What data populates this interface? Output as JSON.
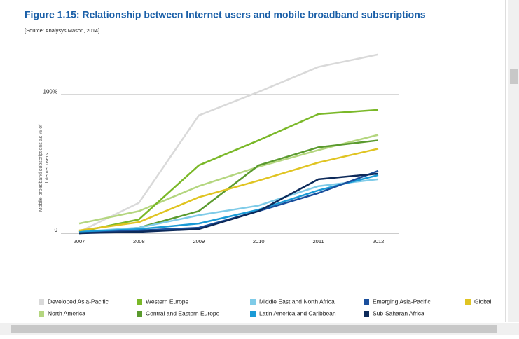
{
  "chart_data": {
    "type": "line",
    "title": "Figure 1.15: Relationship between Internet users and mobile broadband subscriptions",
    "subtitle": "[Source: Analysys Mason, 2014]",
    "y_label": [
      "Mobile broadband subscriptions as % of",
      "Internet users"
    ],
    "categories": [
      "2007",
      "2008",
      "2009",
      "2010",
      "2011",
      "2012"
    ],
    "ylim": [
      0,
      140
    ],
    "yticks": [
      0,
      {
        "value": 100,
        "label": "100%"
      }
    ],
    "series": [
      {
        "name": "Developed Asia-Pacific",
        "color": "#d9d9d9",
        "values": [
          1,
          22,
          85,
          102,
          120,
          129
        ]
      },
      {
        "name": "North America",
        "color": "#b4d67f",
        "values": [
          7,
          16,
          34,
          48,
          60,
          71
        ]
      },
      {
        "name": "Western Europe",
        "color": "#7ab828",
        "values": [
          1,
          10,
          49,
          67,
          86,
          89
        ]
      },
      {
        "name": "Central and Eastern Europe",
        "color": "#5a9a2e",
        "values": [
          0,
          4,
          16,
          49,
          62,
          67
        ]
      },
      {
        "name": "Middle East and North Africa",
        "color": "#7fcbe8",
        "values": [
          1,
          4,
          13,
          20,
          34,
          39
        ]
      },
      {
        "name": "Latin America and Caribbean",
        "color": "#1a9ad6",
        "values": [
          1,
          3,
          7,
          17,
          31,
          42
        ]
      },
      {
        "name": "Emerging Asia-Pacific",
        "color": "#1b4f9c",
        "values": [
          0,
          2,
          4,
          16,
          29,
          45
        ]
      },
      {
        "name": "Sub-Saharan Africa",
        "color": "#0d2a5a",
        "values": [
          0,
          1,
          3,
          16,
          39,
          43
        ]
      },
      {
        "name": "Global",
        "color": "#e0c422",
        "values": [
          2,
          8,
          26,
          38,
          51,
          61
        ]
      }
    ]
  }
}
